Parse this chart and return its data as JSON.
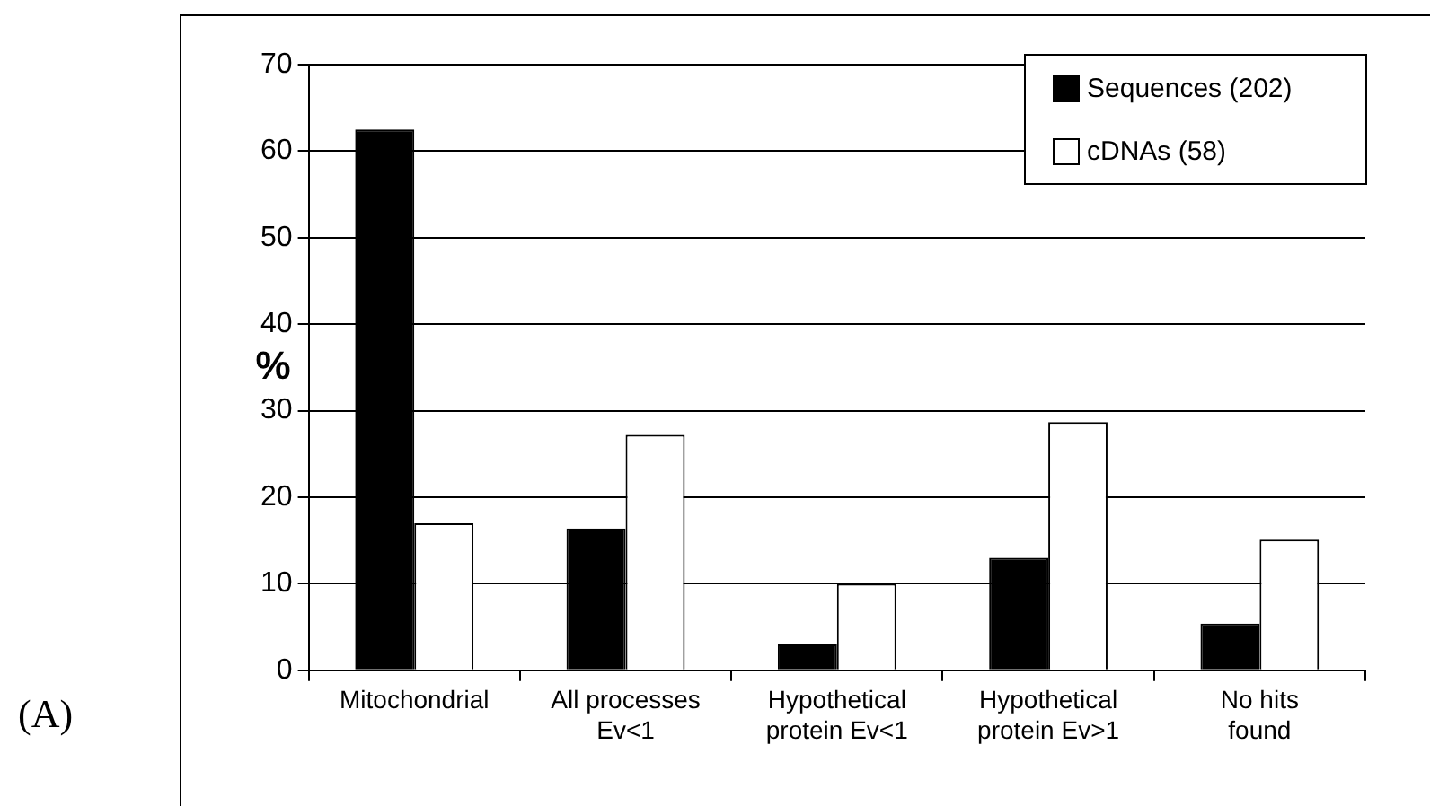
{
  "chart_data": {
    "type": "bar",
    "ylabel": "%",
    "categories": [
      "Mitochondrial",
      "All processes\nEv<1",
      "Hypothetical\nprotein Ev<1",
      "Hypothetical\nprotein Ev>1",
      "No hits\nfound"
    ],
    "series": [
      {
        "name": "Sequences (202)",
        "color": "#000000",
        "values": [
          62.5,
          16.4,
          3,
          13,
          5.4
        ]
      },
      {
        "name": "cDNAs (58)",
        "color": "#ffffff",
        "values": [
          17,
          27.2,
          10,
          28.7,
          15.1
        ]
      }
    ],
    "ylim": [
      0,
      70
    ],
    "yticks": [
      0,
      10,
      20,
      30,
      40,
      50,
      60,
      70
    ],
    "grid": "y",
    "legend": "top right",
    "annotations": [
      "(A)"
    ]
  }
}
